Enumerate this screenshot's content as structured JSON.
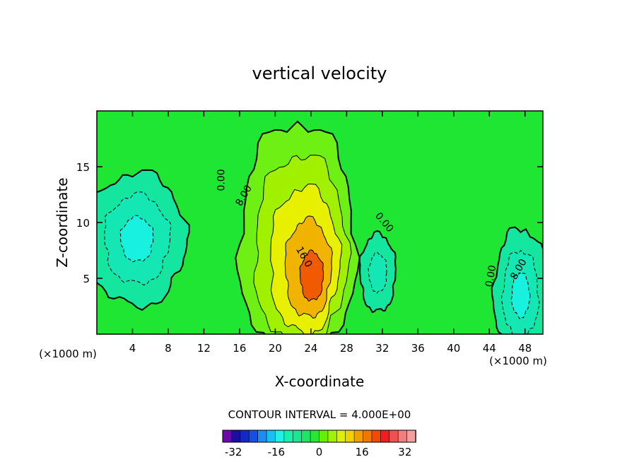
{
  "chart_data": {
    "type": "contour",
    "title": "vertical velocity",
    "xlabel": "X-coordinate",
    "ylabel": "Z-coordinate",
    "x_unit_left": "(×1000 m)",
    "x_unit_right": "(×1000 m)",
    "xlim": [
      0,
      50
    ],
    "ylim": [
      0,
      20
    ],
    "x_ticks": [
      4,
      8,
      12,
      16,
      20,
      24,
      28,
      32,
      36,
      40,
      44,
      48
    ],
    "y_ticks": [
      5,
      10,
      15
    ],
    "contour_interval_text": "CONTOUR INTERVAL = 4.000E+00",
    "contour_interval": 4,
    "background_level": 0,
    "contour_labels": [
      {
        "text": "0.00",
        "x": 14.0,
        "y": 13.8,
        "angle": -90
      },
      {
        "text": "8.00",
        "x": 16.5,
        "y": 12.4,
        "angle": -60
      },
      {
        "text": "16.0",
        "x": 23.2,
        "y": 6.9,
        "angle": 60
      },
      {
        "text": "0.00",
        "x": 32.2,
        "y": 10.0,
        "angle": 50
      },
      {
        "text": "0.00",
        "x": 44.2,
        "y": 5.2,
        "angle": -80
      },
      {
        "text": "8.00",
        "x": 47.3,
        "y": 5.8,
        "angle": -60
      }
    ],
    "features": [
      {
        "name": "updraft",
        "cx": 22.5,
        "cy": 8.0,
        "rx": 6.5,
        "ry": 11.0,
        "max": 20
      },
      {
        "name": "downdraft-left",
        "cx": 4.5,
        "cy": 8.5,
        "rx": 5.5,
        "ry": 6.0,
        "min": -12
      },
      {
        "name": "downdraft-center",
        "cx": 31.5,
        "cy": 5.5,
        "rx": 2.0,
        "ry": 3.5,
        "min": -8
      },
      {
        "name": "downdraft-right",
        "cx": 47.5,
        "cy": 3.5,
        "rx": 3.0,
        "ry": 6.0,
        "min": -12
      }
    ],
    "colorbar": {
      "min": -36,
      "max": 36,
      "step": 4,
      "tick_labels": [
        "-32",
        "-16",
        "0",
        "16",
        "32"
      ],
      "tick_values": [
        -32,
        -16,
        0,
        16,
        32
      ],
      "colors": [
        "#6a0aa8",
        "#1a10a0",
        "#1428c8",
        "#1450e6",
        "#1e8cf0",
        "#18c0f0",
        "#20f0e6",
        "#18f0b0",
        "#1ee690",
        "#1ee664",
        "#28e632",
        "#64f000",
        "#a0f000",
        "#dcf000",
        "#f0d200",
        "#f0a000",
        "#f07800",
        "#f04b00",
        "#f01e1e",
        "#f05050",
        "#f08080",
        "#f0a0a0"
      ]
    },
    "level_colors": {
      "-12": "#18f0e0",
      "-8": "#14e6b4",
      "-4": "#14e6a0",
      "0": "#1ee632",
      "4": "#6ef014",
      "8": "#a0f000",
      "12": "#e6f000",
      "16": "#f0b400",
      "20": "#f05a00"
    }
  }
}
